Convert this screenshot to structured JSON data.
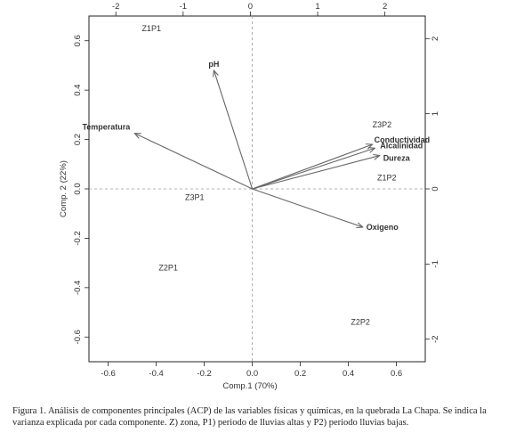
{
  "chart_data": {
    "type": "scatter",
    "subtype": "pca-biplot",
    "xlabel": "Comp.1 (70%)",
    "ylabel": "Comp. 2 (22%)",
    "xlim": [
      -0.68,
      0.72
    ],
    "ylim": [
      -0.7,
      0.7
    ],
    "top_xlim": [
      -2.4,
      2.6
    ],
    "right_ylim": [
      -2.3,
      2.3
    ],
    "x_ticks": [
      -0.6,
      -0.4,
      -0.2,
      0.0,
      0.2,
      0.4,
      0.6
    ],
    "y_ticks": [
      -0.6,
      -0.4,
      -0.2,
      0.0,
      0.2,
      0.4,
      0.6
    ],
    "top_ticks": [
      -2,
      -1,
      0,
      1,
      2
    ],
    "right_ticks": [
      -2,
      -1,
      0,
      1,
      2
    ],
    "reference_lines": "dashed lines at x = 0 and y = 0",
    "samples": [
      {
        "label": "Z1P1",
        "x": -0.42,
        "y": 0.65
      },
      {
        "label": "Z3P2",
        "x": 0.54,
        "y": 0.26
      },
      {
        "label": "Z1P2",
        "x": 0.56,
        "y": 0.045
      },
      {
        "label": "Z3P1",
        "x": -0.24,
        "y": -0.035
      },
      {
        "label": "Z2P1",
        "x": -0.35,
        "y": -0.32
      },
      {
        "label": "Z2P2",
        "x": 0.45,
        "y": -0.54
      }
    ],
    "variables": [
      {
        "label": "pH",
        "x": -0.16,
        "y": 0.48
      },
      {
        "label": "Temperatura",
        "x": -0.49,
        "y": 0.225
      },
      {
        "label": "Conductividad",
        "x": 0.5,
        "y": 0.18
      },
      {
        "label": "Alcalinidad",
        "x": 0.51,
        "y": 0.165
      },
      {
        "label": "Dureza",
        "x": 0.53,
        "y": 0.135
      },
      {
        "label": "Oxigeno",
        "x": 0.46,
        "y": -0.155
      }
    ]
  },
  "caption": "Figura 1. Análisis de componentes principales (ACP) de las variables físicas y químicas, en la quebrada La Chapa. Se indica la varianza explicada por cada componente. Z) zona, P1) periodo de lluvias altas y P2) periodo lluvias bajas.",
  "colors": {
    "arrow": "#666666",
    "axis": "#222222",
    "reference": "#999999",
    "text": "#333333"
  }
}
